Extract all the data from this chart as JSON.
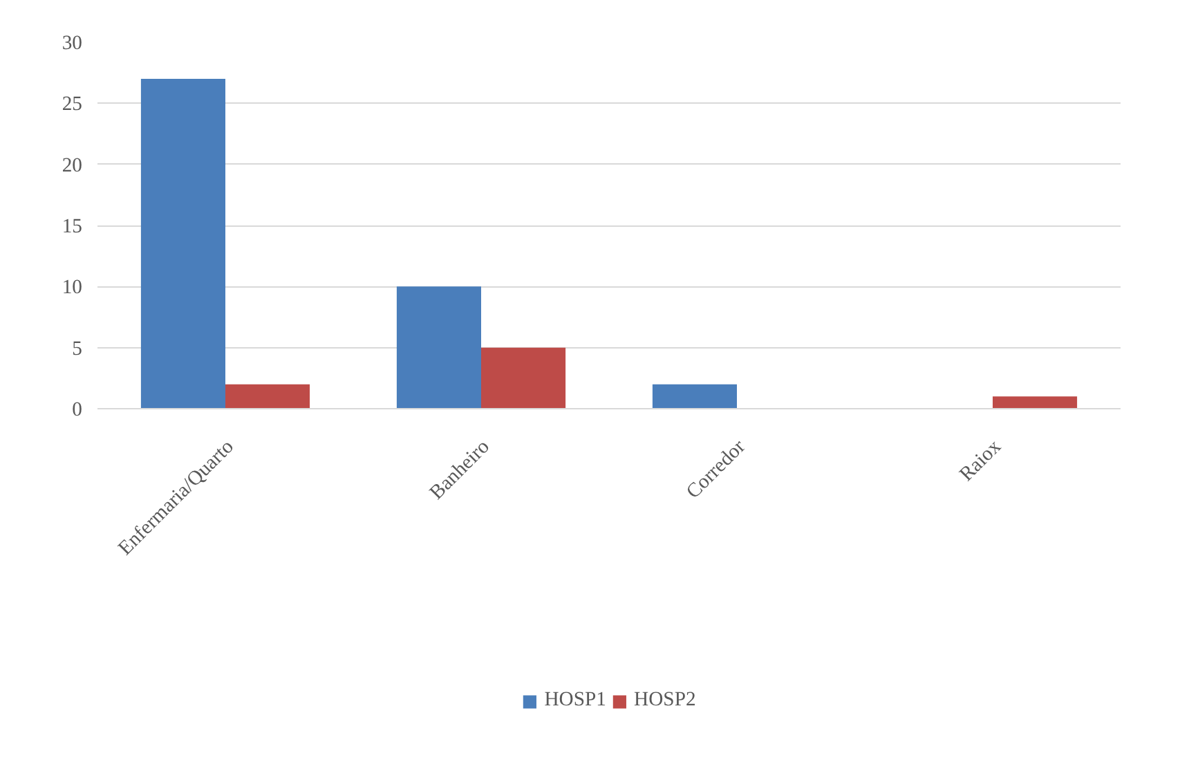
{
  "chart_data": {
    "type": "bar",
    "categories": [
      "Enfermaria/Quarto",
      "Banheiro",
      "Corredor",
      "Raiox"
    ],
    "series": [
      {
        "name": "HOSP1",
        "color": "#4a7ebb",
        "values": [
          27,
          10,
          2,
          0
        ]
      },
      {
        "name": "HOSP2",
        "color": "#be4b48",
        "values": [
          2,
          5,
          0,
          1
        ]
      }
    ],
    "ylim": [
      0,
      30
    ],
    "yticks": [
      0,
      5,
      10,
      15,
      20,
      25,
      30
    ],
    "grid": "y",
    "legend": "bottom"
  }
}
